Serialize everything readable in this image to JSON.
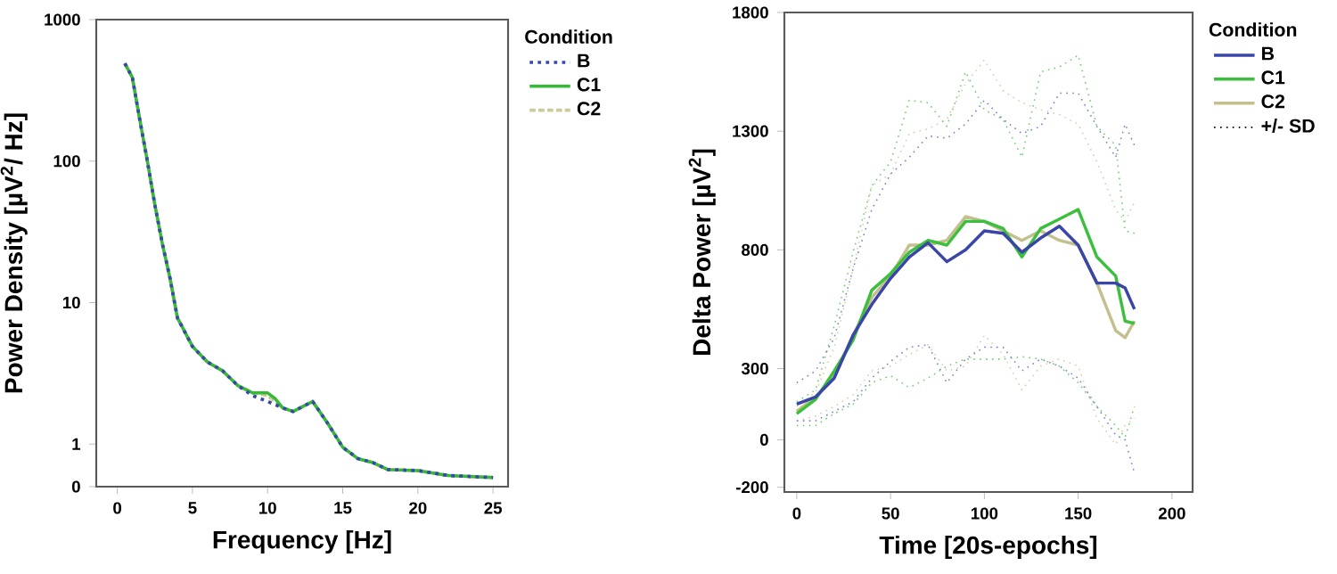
{
  "chart_data": [
    {
      "type": "line",
      "xlabel": "Frequency [Hz]",
      "ylabel": "Power Density [µV$^{2}$/ Hz]",
      "legend_title": "Condition",
      "legend": "right",
      "log": true,
      "grid": false,
      "xlim": [
        -1.4,
        26
      ],
      "xticks": [
        0,
        5,
        10,
        15,
        20,
        25
      ],
      "ylim": [
        0.5,
        1000
      ],
      "yticks": [
        {
          "value": 0.5,
          "label": "0"
        },
        1,
        10,
        100,
        1000
      ],
      "x": [
        0.5,
        1,
        1.5,
        2,
        2.5,
        3,
        3.5,
        4,
        5,
        6,
        7,
        8,
        9,
        10,
        10.5,
        11,
        11.7,
        13,
        14,
        15,
        16,
        17,
        18,
        20,
        22,
        25
      ],
      "series": [
        {
          "name": "B",
          "color": "#3a47b0",
          "line_style": "dotted",
          "values": [
            490,
            390,
            195,
            100,
            49,
            26,
            15,
            7.8,
            4.9,
            3.8,
            3.3,
            2.6,
            2.2,
            2.0,
            1.9,
            1.8,
            1.7,
            2.0,
            1.4,
            0.95,
            0.79,
            0.74,
            0.66,
            0.65,
            0.6,
            0.58
          ]
        },
        {
          "name": "C1",
          "color": "#33bb33",
          "line_style": "solid",
          "values": [
            490,
            390,
            195,
            100,
            49,
            26,
            15,
            7.8,
            4.9,
            3.8,
            3.3,
            2.6,
            2.3,
            2.3,
            2.1,
            1.8,
            1.7,
            2.0,
            1.4,
            0.95,
            0.79,
            0.74,
            0.66,
            0.65,
            0.6,
            0.58
          ]
        },
        {
          "name": "C2",
          "color": "#cdca9a",
          "line_style": "dashed",
          "values": [
            490,
            390,
            195,
            100,
            49,
            26,
            15,
            7.8,
            4.9,
            3.8,
            3.3,
            2.6,
            2.3,
            2.2,
            2.0,
            1.8,
            1.7,
            2.0,
            1.4,
            0.95,
            0.79,
            0.74,
            0.66,
            0.65,
            0.6,
            0.58
          ]
        }
      ]
    },
    {
      "type": "line",
      "xlabel": "Time [20s-epochs]",
      "ylabel": "Delta Power  [µV$^{2}$]",
      "legend_title": "Condition",
      "legend": "right",
      "grid": false,
      "annotations": [
        "+/- SD"
      ],
      "xlim": [
        -6.6,
        211
      ],
      "xticks": [
        0,
        50,
        100,
        150,
        200
      ],
      "ylim": [
        -220,
        1800
      ],
      "yticks": [
        -200,
        0,
        300,
        800,
        1300,
        1800
      ],
      "x": [
        0,
        10,
        20,
        30,
        40,
        50,
        60,
        70,
        80,
        90,
        100,
        110,
        120,
        130,
        140,
        150,
        160,
        170,
        175,
        180
      ],
      "series": [
        {
          "name": "B",
          "color": "#3a45a8",
          "line_style": "solid",
          "values": [
            150,
            180,
            260,
            440,
            570,
            680,
            770,
            830,
            750,
            800,
            880,
            870,
            790,
            850,
            900,
            820,
            660,
            660,
            640,
            550
          ]
        },
        {
          "name": "C1",
          "color": "#3cbf3c",
          "line_style": "solid",
          "values": [
            110,
            170,
            290,
            420,
            630,
            700,
            790,
            840,
            820,
            920,
            920,
            890,
            770,
            890,
            930,
            970,
            770,
            690,
            500,
            490
          ]
        },
        {
          "name": "C2",
          "color": "#c3c08e",
          "line_style": "solid",
          "values": [
            120,
            180,
            270,
            440,
            600,
            690,
            820,
            820,
            840,
            940,
            920,
            880,
            840,
            880,
            840,
            820,
            660,
            460,
            430,
            500
          ]
        },
        {
          "color": "#7a80c8",
          "line_style": "dotted",
          "values": [
            240,
            290,
            430,
            720,
            970,
            1120,
            1190,
            1280,
            1270,
            1330,
            1430,
            1350,
            1290,
            1320,
            1460,
            1460,
            1320,
            1190,
            1330,
            1240
          ]
        },
        {
          "color": "#7a80c8",
          "line_style": "dotted",
          "values": [
            80,
            80,
            120,
            160,
            260,
            330,
            390,
            400,
            240,
            340,
            390,
            390,
            290,
            340,
            310,
            260,
            140,
            20,
            0,
            -140
          ]
        },
        {
          "color": "#6dcf6d",
          "line_style": "dotted",
          "values": [
            160,
            210,
            480,
            790,
            1070,
            1170,
            1430,
            1420,
            1320,
            1550,
            1390,
            1350,
            1190,
            1550,
            1570,
            1620,
            1320,
            1240,
            880,
            870
          ]
        },
        {
          "color": "#6dcf6d",
          "line_style": "dotted",
          "values": [
            60,
            60,
            110,
            150,
            240,
            270,
            220,
            260,
            310,
            340,
            340,
            340,
            350,
            340,
            310,
            240,
            140,
            60,
            10,
            140
          ]
        },
        {
          "color": "#d2d0aa",
          "line_style": "dotted",
          "values": [
            140,
            200,
            390,
            720,
            1070,
            1120,
            1290,
            1310,
            1350,
            1500,
            1600,
            1470,
            1420,
            1390,
            1370,
            1330,
            1170,
            970,
            920,
            1000
          ]
        },
        {
          "color": "#d2d0aa",
          "line_style": "dotted",
          "values": [
            80,
            100,
            140,
            190,
            290,
            310,
            360,
            400,
            290,
            310,
            440,
            360,
            210,
            310,
            340,
            310,
            90,
            -20,
            60,
            90
          ]
        }
      ]
    }
  ]
}
